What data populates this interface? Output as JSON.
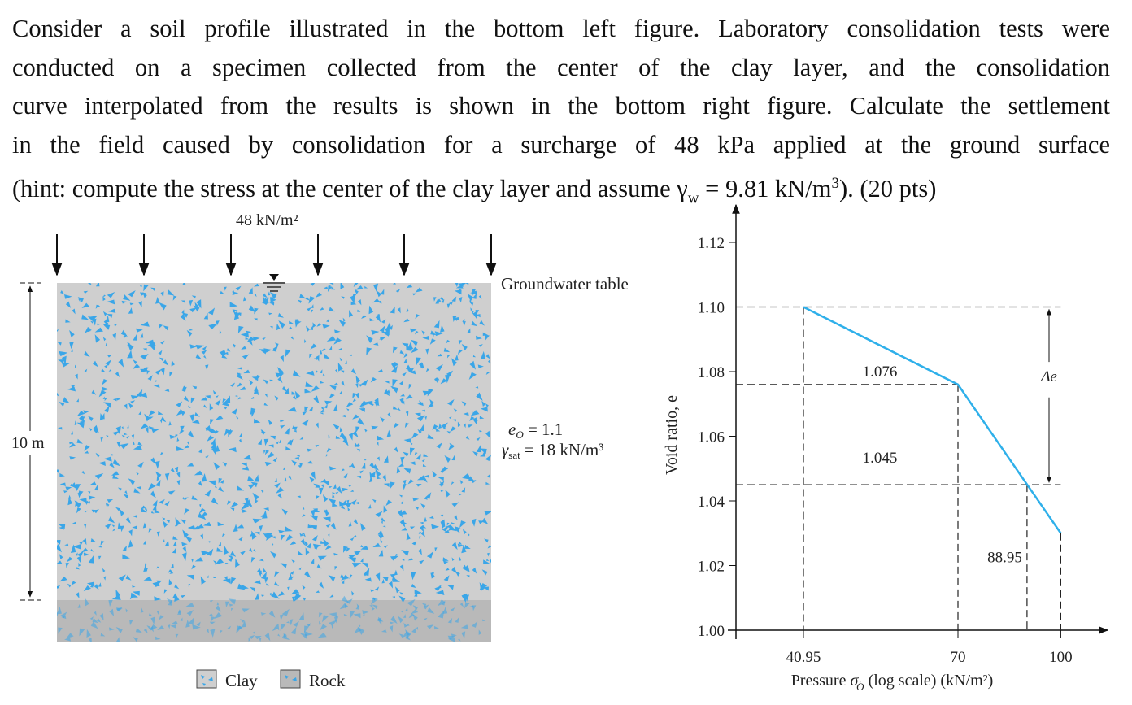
{
  "problem": {
    "lines": [
      "Consider a soil profile illustrated in the bottom left figure. Laboratory consolidation tests were",
      "conducted on a specimen collected from the center of the clay layer, and the consolidation",
      "curve interpolated from the results is shown in the bottom right figure. Calculate the settlement",
      "in the field caused by consolidation for a surcharge of 48 kPa applied at the ground surface"
    ],
    "last_line_prefix": "(hint: compute the stress at the center of the clay layer and assume ",
    "gamma": "γ",
    "gamma_sub": "w",
    "last_line_mid": " = 9.81 kN/m",
    "sup3": "3",
    "last_line_suffix": "). (20 pts)"
  },
  "soil_profile": {
    "load_label": "48 kN/m²",
    "groundwater_label": "Groundwater table",
    "thickness_label": "10 m",
    "e0_label": "e",
    "e0_sub": "O",
    "e0_value": " = 1.1",
    "gamma_label": "γ",
    "gamma_sub": "sat",
    "gamma_value": " = 18 kN/m³",
    "legend": [
      {
        "label": "Clay",
        "color": "#cfcfcf"
      },
      {
        "label": "Rock",
        "color": "#b9b9b9"
      }
    ],
    "particle_color": "#3aa6e8"
  },
  "chart_data": {
    "type": "line",
    "xlabel": "Pressure σ′O (log scale) (kN/m²)",
    "xlabel_parts": {
      "pre": "Pressure ",
      "sigma": "σ",
      "sub": "O",
      "post": " (log scale) (kN/m²)"
    },
    "ylabel": "Void ratio, e",
    "x_scale": "log",
    "ylim": [
      1.0,
      1.12
    ],
    "yticks": [
      "1.00",
      "1.02",
      "1.04",
      "1.06",
      "1.08",
      "1.10",
      "1.12"
    ],
    "xticks": [
      "40.95",
      "70",
      "100"
    ],
    "series": [
      {
        "x": [
          40.95,
          70,
          100
        ],
        "y": [
          1.1,
          1.076,
          1.03
        ],
        "color": "#2fb0ea"
      }
    ],
    "annotations": {
      "e1": "1.076",
      "e2": "1.045",
      "p_final": "88.95",
      "delta": "Δe"
    },
    "grid": false
  }
}
